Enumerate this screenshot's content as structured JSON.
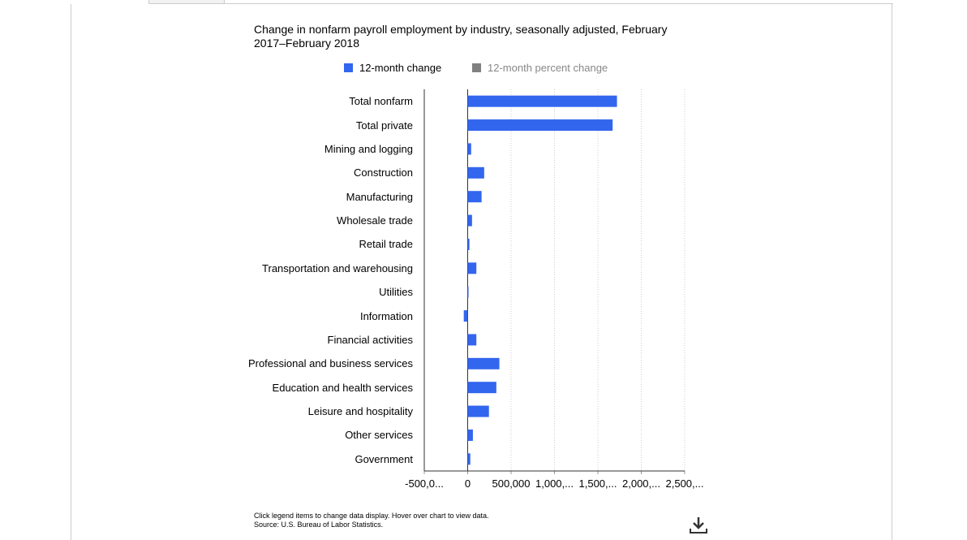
{
  "chart_data": {
    "type": "barh",
    "title": "Change in nonfarm payroll employment by industry, seasonally adjusted, February 2017–February 2018",
    "categories": [
      "Total nonfarm",
      "Total private",
      "Mining and logging",
      "Construction",
      "Manufacturing",
      "Wholesale trade",
      "Retail trade",
      "Transportation and warehousing",
      "Utilities",
      "Information",
      "Financial activities",
      "Professional and business services",
      "Education and health services",
      "Leisure and hospitality",
      "Other services",
      "Government"
    ],
    "series": [
      {
        "name": "12-month change",
        "color": "#3366ee",
        "visible": true,
        "values": [
          1720000,
          1670000,
          40000,
          190000,
          160000,
          50000,
          20000,
          100000,
          1000,
          -45000,
          100000,
          365000,
          330000,
          245000,
          60000,
          30000
        ]
      },
      {
        "name": "12-month percent change",
        "color": "#808080",
        "visible": false
      }
    ],
    "xlim": [
      -500000,
      2500000
    ],
    "xticks": [
      {
        "value": -500000,
        "label": "-500,0..."
      },
      0,
      {
        "value": 500000,
        "label": "500,000"
      },
      {
        "value": 1000000,
        "label": "1,000,..."
      },
      {
        "value": 1500000,
        "label": "1,500,..."
      },
      {
        "value": 2000000,
        "label": "2,000,..."
      },
      {
        "value": 2500000,
        "label": "2,500,..."
      }
    ],
    "grid": true,
    "notes": [
      "Click legend items to change data display. Hover over chart to view data.",
      "Source: U.S. Bureau of Labor Statistics."
    ]
  }
}
